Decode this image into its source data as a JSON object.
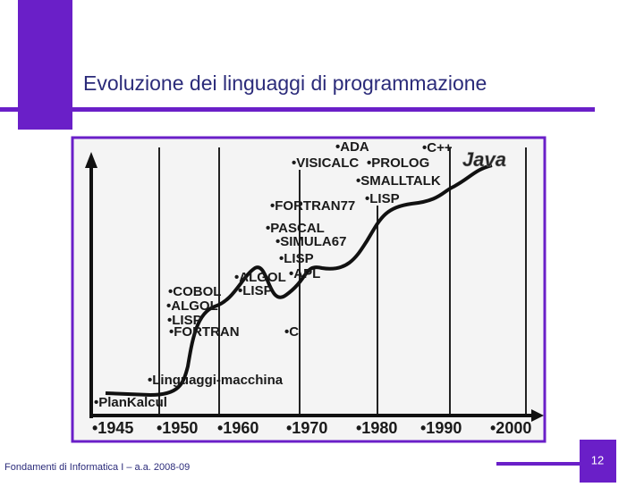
{
  "slide": {
    "title": "Evoluzione dei linguaggi di programmazione",
    "footer": "Fondamenti di Informatica I – a.a. 2008-09",
    "page_number": "12"
  },
  "timeline": {
    "years": [
      "•1945",
      "•1950",
      "•1960",
      "•1970",
      "•1980",
      "•1990",
      "•2000"
    ],
    "languages": [
      "•ADA",
      "•C++",
      "•VISICALC",
      "•PROLOG",
      "Java",
      "•SMALLTALK",
      "•FORTRAN77",
      "•LISP",
      "•PASCAL",
      "•SIMULA67",
      "•LISP",
      "•ALGOL",
      "•APL",
      "•COBOL",
      "•LISP",
      "•ALGOL",
      "•LISP",
      "•FORTRAN",
      "•C",
      "•Linguaggi-macchina",
      "•PlanKalcul"
    ]
  }
}
